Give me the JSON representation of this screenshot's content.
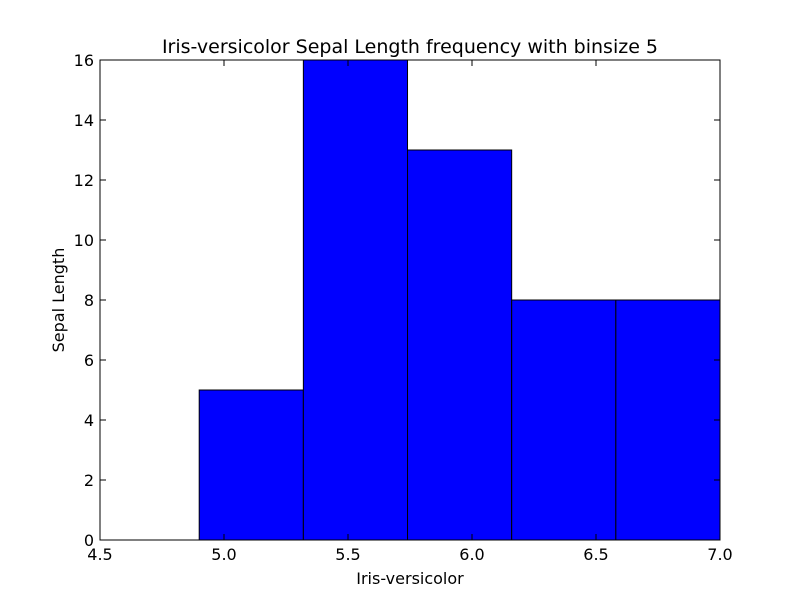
{
  "chart_data": {
    "type": "bar",
    "title": "Iris-versicolor Sepal Length frequency with binsize 5",
    "xlabel": "Iris-versicolor",
    "ylabel": "Sepal Length",
    "xlim": [
      4.5,
      7.0
    ],
    "ylim": [
      0,
      16
    ],
    "bin_edges": [
      4.9,
      5.32,
      5.74,
      6.16,
      6.58,
      7.0
    ],
    "values": [
      5,
      16,
      13,
      8,
      8
    ],
    "xticks": [
      4.5,
      5.0,
      5.5,
      6.0,
      6.5,
      7.0
    ],
    "xtick_labels": [
      "4.5",
      "5.0",
      "5.5",
      "6.0",
      "6.5",
      "7.0"
    ],
    "yticks": [
      0,
      2,
      4,
      6,
      8,
      10,
      12,
      14,
      16
    ],
    "ytick_labels": [
      "0",
      "2",
      "4",
      "6",
      "8",
      "10",
      "12",
      "14",
      "16"
    ],
    "bar_color": "#0000ff",
    "edge_color": "#000000",
    "grid": false,
    "legend": false
  }
}
